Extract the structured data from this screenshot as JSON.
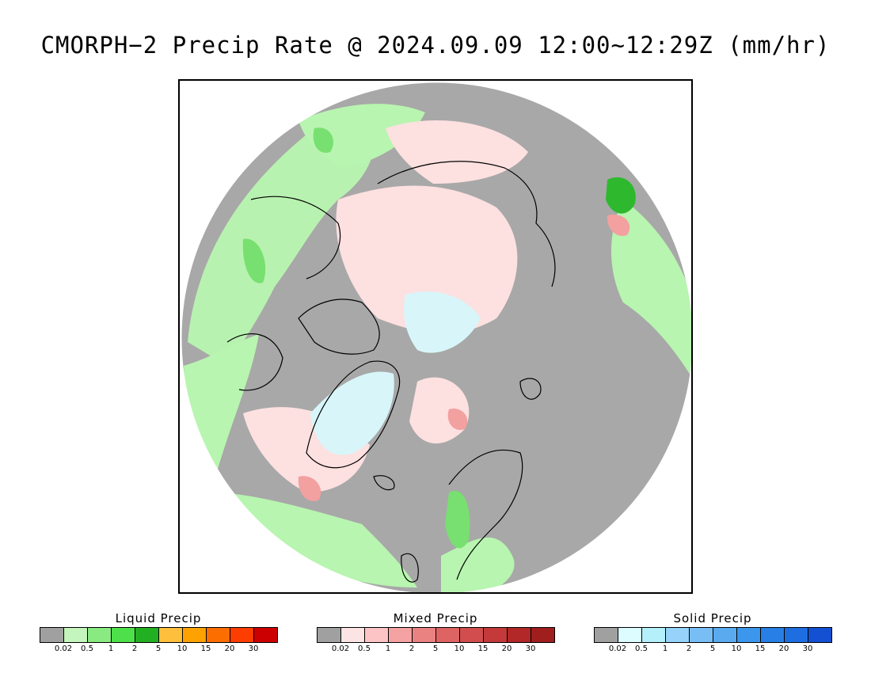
{
  "title": "CMORPH−2 Precip Rate @ 2024.09.09 12:00~12:29Z (mm/hr)",
  "map": {
    "projection": "polar stereographic (north)",
    "colors": {
      "no_precip": "#a8a8a8",
      "liquid_light": "#b8f5b0",
      "liquid_mid": "#78e070",
      "liquid_heavy": "#2eb82e",
      "mixed_light": "#fde0e0",
      "mixed_mid": "#f2a0a0",
      "solid_light": "#d8f6fa",
      "coast": "#000000"
    }
  },
  "legends": [
    {
      "title": "Liquid Precip",
      "ticks": [
        "0.02",
        "0.5",
        "1",
        "2",
        "5",
        "10",
        "15",
        "20",
        "30"
      ],
      "colors": [
        "#a0a0a0",
        "#c4f5bc",
        "#8aea82",
        "#4ee04a",
        "#22b022",
        "#fdbf3c",
        "#fda200",
        "#fd6e00",
        "#fd3e00",
        "#cc0000"
      ]
    },
    {
      "title": "Mixed Precip",
      "ticks": [
        "0.02",
        "0.5",
        "1",
        "2",
        "5",
        "10",
        "15",
        "20",
        "30"
      ],
      "colors": [
        "#a0a0a0",
        "#fde4e4",
        "#fcc4c4",
        "#f4a2a2",
        "#ea8282",
        "#de6464",
        "#d24e4e",
        "#c43a3a",
        "#b22828",
        "#a01e1e"
      ]
    },
    {
      "title": "Solid Precip",
      "ticks": [
        "0.02",
        "0.5",
        "1",
        "2",
        "5",
        "10",
        "15",
        "20",
        "30"
      ],
      "colors": [
        "#a0a0a0",
        "#dcfcff",
        "#b4f0fa",
        "#96d2fa",
        "#78bef5",
        "#5aaaf0",
        "#3c96eb",
        "#2880e6",
        "#1e6ee1",
        "#1450d2"
      ]
    }
  ]
}
